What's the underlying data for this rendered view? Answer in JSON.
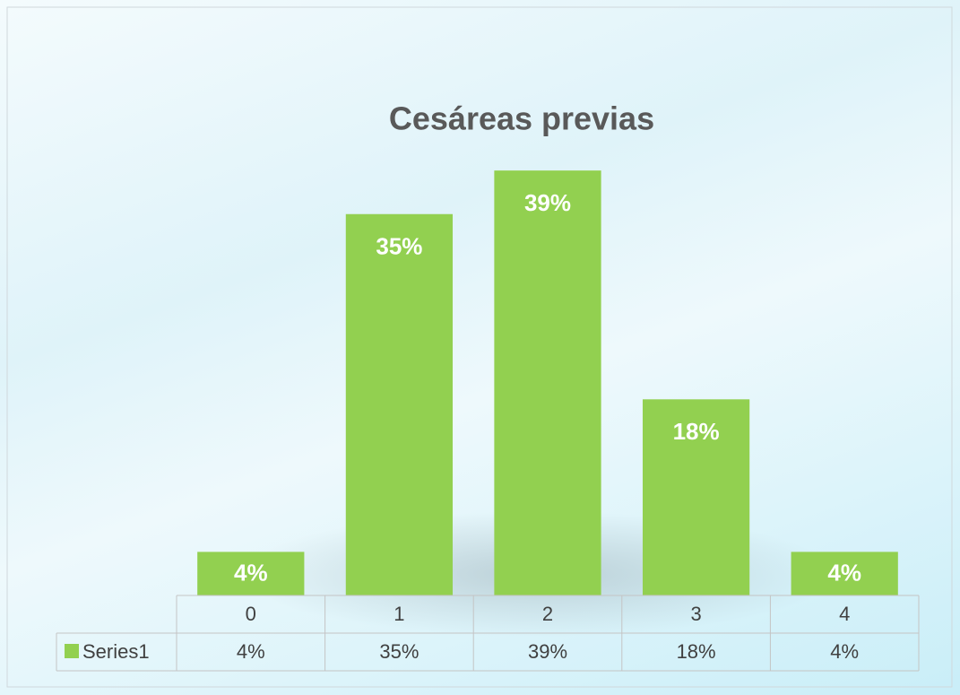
{
  "chart_data": {
    "type": "bar",
    "title": "Cesáreas previas",
    "categories": [
      "0",
      "1",
      "2",
      "3",
      "4"
    ],
    "series": [
      {
        "name": "Series1",
        "color": "#92d050",
        "values": [
          4,
          35,
          39,
          18,
          4
        ],
        "value_labels": [
          "4%",
          "35%",
          "39%",
          "18%",
          "4%"
        ]
      }
    ],
    "ylim": [
      0,
      40
    ],
    "data_table": true
  }
}
